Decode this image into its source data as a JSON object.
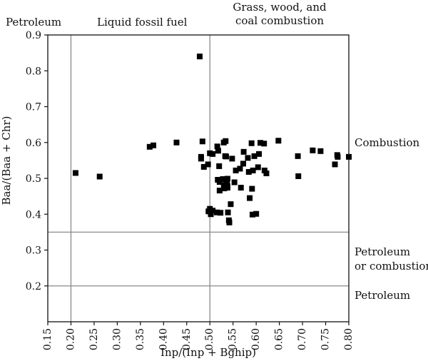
{
  "chart_data": {
    "type": "scatter",
    "xlabel": "Inp/(Inp + Bghip)",
    "ylabel": "Baa/(Baa + Chr)",
    "xlim": [
      0.15,
      0.8
    ],
    "ylim": [
      0.1,
      0.9
    ],
    "xticks": [
      "0.15",
      "0.20",
      "0.25",
      "0.30",
      "0.35",
      "0.40",
      "0.45",
      "0.50",
      "0.55",
      "0.60",
      "0.65",
      "0.70",
      "0.75",
      "0.80"
    ],
    "yticks": [
      "0.2",
      "0.3",
      "0.4",
      "0.5",
      "0.6",
      "0.7",
      "0.8",
      "0.9"
    ],
    "reference_lines": {
      "vertical": [
        0.2,
        0.5
      ],
      "horizontal": [
        0.2,
        0.35
      ]
    },
    "region_labels": {
      "petroleum_top": "Petroleum",
      "liquid_fossil": "Liquid fossil fuel",
      "grass_line1": "Grass, wood, and",
      "grass_line2": "coal combustion",
      "combustion": "Combustion",
      "pet_or_comb_line1": "Petroleum",
      "pet_or_comb_line2": "or combustion",
      "petroleum_right": "Petroleum"
    },
    "marker": "square",
    "marker_color": "#000000",
    "points": [
      [
        0.21,
        0.515
      ],
      [
        0.262,
        0.505
      ],
      [
        0.37,
        0.588
      ],
      [
        0.378,
        0.592
      ],
      [
        0.428,
        0.6
      ],
      [
        0.478,
        0.84
      ],
      [
        0.481,
        0.555
      ],
      [
        0.481,
        0.56
      ],
      [
        0.484,
        0.603
      ],
      [
        0.487,
        0.532
      ],
      [
        0.496,
        0.539
      ],
      [
        0.5,
        0.57
      ],
      [
        0.497,
        0.408
      ],
      [
        0.5,
        0.415
      ],
      [
        0.502,
        0.4
      ],
      [
        0.506,
        0.41
      ],
      [
        0.506,
        0.568
      ],
      [
        0.515,
        0.405
      ],
      [
        0.516,
        0.589
      ],
      [
        0.518,
        0.577
      ],
      [
        0.52,
        0.534
      ],
      [
        0.517,
        0.496
      ],
      [
        0.521,
        0.49
      ],
      [
        0.521,
        0.466
      ],
      [
        0.523,
        0.404
      ],
      [
        0.528,
        0.498
      ],
      [
        0.53,
        0.481
      ],
      [
        0.531,
        0.472
      ],
      [
        0.53,
        0.6
      ],
      [
        0.534,
        0.604
      ],
      [
        0.533,
        0.562
      ],
      [
        0.535,
        0.561
      ],
      [
        0.535,
        0.493
      ],
      [
        0.537,
        0.484
      ],
      [
        0.538,
        0.499
      ],
      [
        0.538,
        0.478
      ],
      [
        0.538,
        0.474
      ],
      [
        0.536,
        0.489
      ],
      [
        0.539,
        0.405
      ],
      [
        0.541,
        0.383
      ],
      [
        0.542,
        0.377
      ],
      [
        0.545,
        0.428
      ],
      [
        0.548,
        0.555
      ],
      [
        0.553,
        0.489
      ],
      [
        0.556,
        0.522
      ],
      [
        0.565,
        0.527
      ],
      [
        0.567,
        0.474
      ],
      [
        0.572,
        0.541
      ],
      [
        0.573,
        0.574
      ],
      [
        0.582,
        0.557
      ],
      [
        0.584,
        0.518
      ],
      [
        0.586,
        0.445
      ],
      [
        0.59,
        0.598
      ],
      [
        0.591,
        0.471
      ],
      [
        0.592,
        0.399
      ],
      [
        0.593,
        0.522
      ],
      [
        0.596,
        0.562
      ],
      [
        0.6,
        0.401
      ],
      [
        0.604,
        0.531
      ],
      [
        0.606,
        0.568
      ],
      [
        0.609,
        0.599
      ],
      [
        0.617,
        0.597
      ],
      [
        0.618,
        0.522
      ],
      [
        0.622,
        0.514
      ],
      [
        0.648,
        0.605
      ],
      [
        0.69,
        0.562
      ],
      [
        0.691,
        0.506
      ],
      [
        0.722,
        0.578
      ],
      [
        0.739,
        0.576
      ],
      [
        0.77,
        0.539
      ],
      [
        0.775,
        0.565
      ],
      [
        0.776,
        0.56
      ],
      [
        0.8,
        0.56
      ]
    ]
  }
}
